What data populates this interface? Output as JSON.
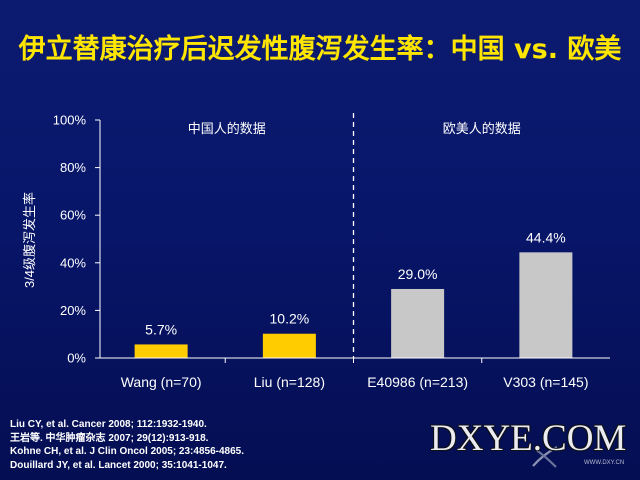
{
  "colors": {
    "background": "#08166a",
    "title": "#ffe600",
    "text": "#ffffff",
    "axis": "#ffffff"
  },
  "chart_data": {
    "type": "bar",
    "title": "伊立替康治疗后迟发性腹泻发生率：中国 vs. 欧美",
    "categories": [
      "Wang (n=70)",
      "Liu (n=128)",
      "E40986 (n=213)",
      "V303 (n=145)"
    ],
    "values": [
      5.7,
      10.2,
      29.0,
      44.4
    ],
    "value_labels": [
      "5.7%",
      "10.2%",
      "29.0%",
      "44.4%"
    ],
    "bar_colors": [
      "#ffcc00",
      "#ffcc00",
      "#c8c8c8",
      "#c8c8c8"
    ],
    "xlabel": "",
    "ylabel": "3/4级腹泻发生率",
    "ylim": [
      0,
      100
    ],
    "yticks": [
      0,
      20,
      40,
      60,
      80,
      100
    ],
    "ytick_labels": [
      "0%",
      "20%",
      "40%",
      "60%",
      "80%",
      "100%"
    ],
    "groups": [
      {
        "label": "中国人的数据",
        "categories": [
          0,
          1
        ]
      },
      {
        "label": "欧美人的数据",
        "categories": [
          2,
          3
        ]
      }
    ],
    "grid": false,
    "legend": "none"
  },
  "references": [
    "Liu CY, et al. Cancer 2008; 112:1932-1940.",
    "王岩等. 中华肿瘤杂志 2007; 29(12):913-918.",
    "Kohne CH, et al. J Clin Oncol 2005; 23:4856-4865.",
    "Douillard JY, et al. Lancet 2000; 35:1041-1047."
  ],
  "watermark": {
    "text": "DXYE.COM",
    "url": "WWW.DXY.CN"
  }
}
